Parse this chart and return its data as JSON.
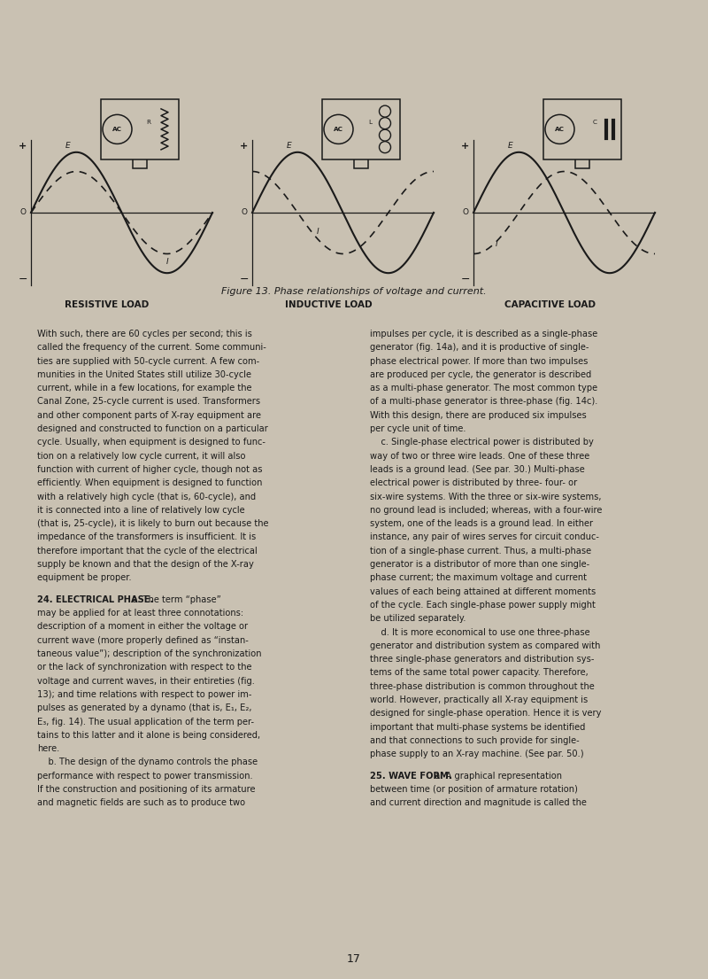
{
  "bg_color": "#c9c1b2",
  "page_width": 8.0,
  "page_height": 11.05,
  "figure_caption": "Figure 13. Phase relationships of voltage and current.",
  "diagram_labels": [
    "RESISTIVE LOAD",
    "INDUCTIVE LOAD",
    "CAPACITIVE LOAD"
  ],
  "text_color": "#1a1a1a",
  "line_color": "#1a1a1a",
  "body_text_left": [
    "With such, there are 60 cycles per second; this is",
    "called the frequency of the current. Some communi-",
    "ties are supplied with 50-cycle current. A few com-",
    "munities in the United States still utilize 30-cycle",
    "current, while in a few locations, for example the",
    "Canal Zone, 25-cycle current is used. Transformers",
    "and other component parts of X-ray equipment are",
    "designed and constructed to function on a particular",
    "cycle. Usually, when equipment is designed to func-",
    "tion on a relatively low cycle current, it will also",
    "function with current of higher cycle, though not as",
    "efficiently. When equipment is designed to function",
    "with a relatively high cycle (that is, 60-cycle), and",
    "it is connected into a line of relatively low cycle",
    "(that is, 25-cycle), it is likely to burn out because the",
    "impedance of the transformers is insufficient. It is",
    "therefore important that the cycle of the electrical",
    "supply be known and that the design of the X-ray",
    "equipment be proper.",
    "",
    "24. ELECTRICAL PHASE.||a. The term “phase”",
    "may be applied for at least three connotations:",
    "description of a moment in either the voltage or",
    "current wave (more properly defined as “instan-",
    "taneous value”); description of the synchronization",
    "or the lack of synchronization with respect to the",
    "voltage and current waves, in their entireties (fig.",
    "13); and time relations with respect to power im-",
    "pulses as generated by a dynamo (that is, E₁, E₂,",
    "E₃, fig. 14). The usual application of the term per-",
    "tains to this latter and it alone is being considered,",
    "here.",
    "    b. The design of the dynamo controls the phase",
    "performance with respect to power transmission.",
    "If the construction and positioning of its armature",
    "and magnetic fields are such as to produce two"
  ],
  "body_text_right": [
    "impulses per cycle, it is described as a single-phase",
    "generator (fig. 14a), and it is productive of single-",
    "phase electrical power. If more than two impulses",
    "are produced per cycle, the generator is described",
    "as a multi-phase generator. The most common type",
    "of a multi-phase generator is three-phase (fig. 14c).",
    "With this design, there are produced six impulses",
    "per cycle unit of time.",
    "    c. Single-phase electrical power is distributed by",
    "way of two or three wire leads. One of these three",
    "leads is a ground lead. (See par. 30.) Multi-phase",
    "electrical power is distributed by three- four- or",
    "six-wire systems. With the three or six-wire systems,",
    "no ground lead is included; whereas, with a four-wire",
    "system, one of the leads is a ground lead. In either",
    "instance, any pair of wires serves for circuit conduc-",
    "tion of a single-phase current. Thus, a multi-phase",
    "generator is a distributor of more than one single-",
    "phase current; the maximum voltage and current",
    "values of each being attained at different moments",
    "of the cycle. Each single-phase power supply might",
    "be utilized separately.",
    "    d. It is more economical to use one three-phase",
    "generator and distribution system as compared with",
    "three single-phase generators and distribution sys-",
    "tems of the same total power capacity. Therefore,",
    "three-phase distribution is common throughout the",
    "world. However, practically all X-ray equipment is",
    "designed for single-phase operation. Hence it is very",
    "important that multi-phase systems be identified",
    "and that connections to such provide for single-",
    "phase supply to an X-ray machine. (See par. 50.)",
    "",
    "25. WAVE FORM.||a. A graphical representation",
    "between time (or position of armature rotation)",
    "and current direction and magnitude is called the"
  ],
  "page_number": "17"
}
